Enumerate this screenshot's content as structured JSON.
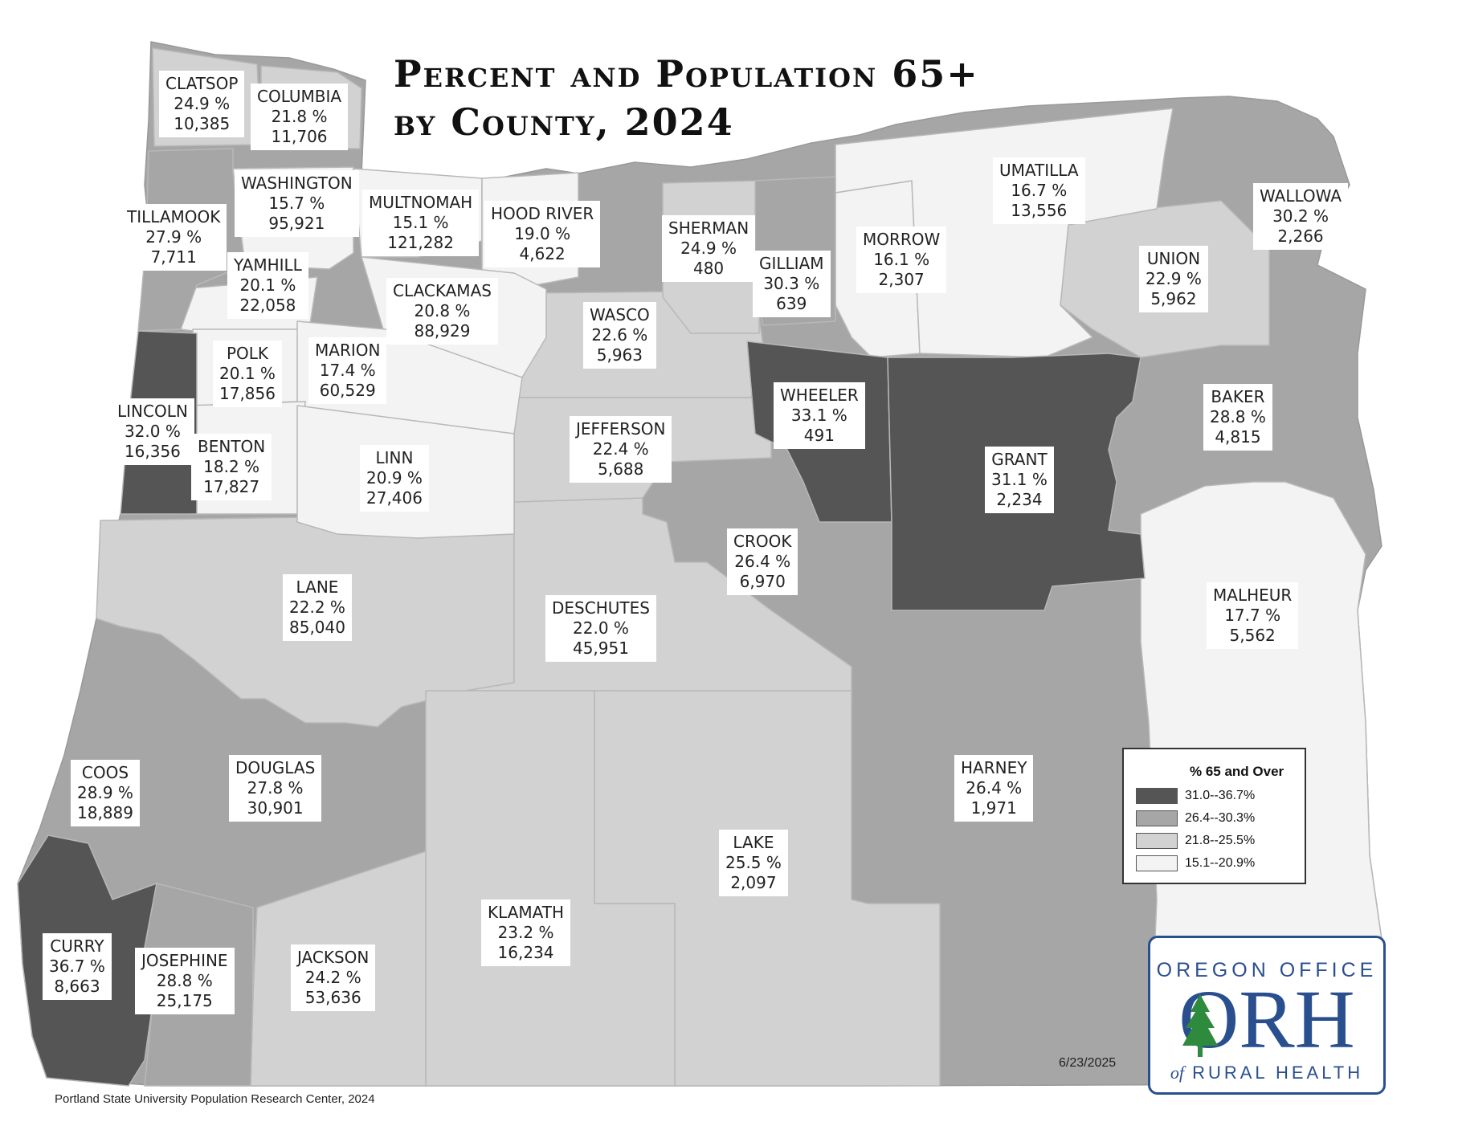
{
  "title": {
    "line1": "Percent and Population 65+",
    "line2": "by County, 2024"
  },
  "colors": {
    "class_31_0_36_7": "#555555",
    "class_26_4_30_3": "#a6a6a6",
    "class_21_8_25_5": "#d2d2d2",
    "class_15_1_20_9": "#f3f3f3",
    "logo_blue": "#2a4f8f",
    "logo_green": "#2e8a3c"
  },
  "counties": [
    {
      "name": "CLATSOP",
      "pct": "24.9 %",
      "pop": "10,385"
    },
    {
      "name": "COLUMBIA",
      "pct": "21.8 %",
      "pop": "11,706"
    },
    {
      "name": "WASHINGTON",
      "pct": "15.7 %",
      "pop": "95,921"
    },
    {
      "name": "TILLAMOOK",
      "pct": "27.9 %",
      "pop": "7,711"
    },
    {
      "name": "MULTNOMAH",
      "pct": "15.1 %",
      "pop": "121,282"
    },
    {
      "name": "HOOD RIVER",
      "pct": "19.0 %",
      "pop": "4,622"
    },
    {
      "name": "SHERMAN",
      "pct": "24.9 %",
      "pop": "480"
    },
    {
      "name": "UMATILLA",
      "pct": "16.7 %",
      "pop": "13,556"
    },
    {
      "name": "WALLOWA",
      "pct": "30.2 %",
      "pop": "2,266"
    },
    {
      "name": "YAMHILL",
      "pct": "20.1 %",
      "pop": "22,058"
    },
    {
      "name": "CLACKAMAS",
      "pct": "20.8 %",
      "pop": "88,929"
    },
    {
      "name": "GILLIAM",
      "pct": "30.3 %",
      "pop": "639"
    },
    {
      "name": "MORROW",
      "pct": "16.1 %",
      "pop": "2,307"
    },
    {
      "name": "UNION",
      "pct": "22.9 %",
      "pop": "5,962"
    },
    {
      "name": "WASCO",
      "pct": "22.6 %",
      "pop": "5,963"
    },
    {
      "name": "POLK",
      "pct": "20.1 %",
      "pop": "17,856"
    },
    {
      "name": "MARION",
      "pct": "17.4 %",
      "pop": "60,529"
    },
    {
      "name": "LINCOLN",
      "pct": "32.0 %",
      "pop": "16,356"
    },
    {
      "name": "WHEELER",
      "pct": "33.1 %",
      "pop": "491"
    },
    {
      "name": "BAKER",
      "pct": "28.8 %",
      "pop": "4,815"
    },
    {
      "name": "JEFFERSON",
      "pct": "22.4 %",
      "pop": "5,688"
    },
    {
      "name": "BENTON",
      "pct": "18.2 %",
      "pop": "17,827"
    },
    {
      "name": "LINN",
      "pct": "20.9 %",
      "pop": "27,406"
    },
    {
      "name": "GRANT",
      "pct": "31.1 %",
      "pop": "2,234"
    },
    {
      "name": "CROOK",
      "pct": "26.4 %",
      "pop": "6,970"
    },
    {
      "name": "LANE",
      "pct": "22.2 %",
      "pop": "85,040"
    },
    {
      "name": "MALHEUR",
      "pct": "17.7 %",
      "pop": "5,562"
    },
    {
      "name": "DESCHUTES",
      "pct": "22.0 %",
      "pop": "45,951"
    },
    {
      "name": "COOS",
      "pct": "28.9 %",
      "pop": "18,889"
    },
    {
      "name": "DOUGLAS",
      "pct": "27.8 %",
      "pop": "30,901"
    },
    {
      "name": "HARNEY",
      "pct": "26.4 %",
      "pop": "1,971"
    },
    {
      "name": "LAKE",
      "pct": "25.5 %",
      "pop": "2,097"
    },
    {
      "name": "KLAMATH",
      "pct": "23.2 %",
      "pop": "16,234"
    },
    {
      "name": "CURRY",
      "pct": "36.7 %",
      "pop": "8,663"
    },
    {
      "name": "JOSEPHINE",
      "pct": "28.8 %",
      "pop": "25,175"
    },
    {
      "name": "JACKSON",
      "pct": "24.2 %",
      "pop": "53,636"
    }
  ],
  "legend": {
    "title": "% 65 and Over",
    "items": [
      {
        "range": "31.0--36.7%",
        "color": "#555555"
      },
      {
        "range": "26.4--30.3%",
        "color": "#a6a6a6"
      },
      {
        "range": "21.8--25.5%",
        "color": "#d2d2d2"
      },
      {
        "range": "15.1--20.9%",
        "color": "#f3f3f3"
      }
    ]
  },
  "logo": {
    "top": "OREGON OFFICE",
    "mark": "ORH",
    "bottom_of": "of",
    "bottom": "RURAL HEALTH"
  },
  "date": "6/23/2025",
  "source": "Portland State University Population Research Center, 2024"
}
